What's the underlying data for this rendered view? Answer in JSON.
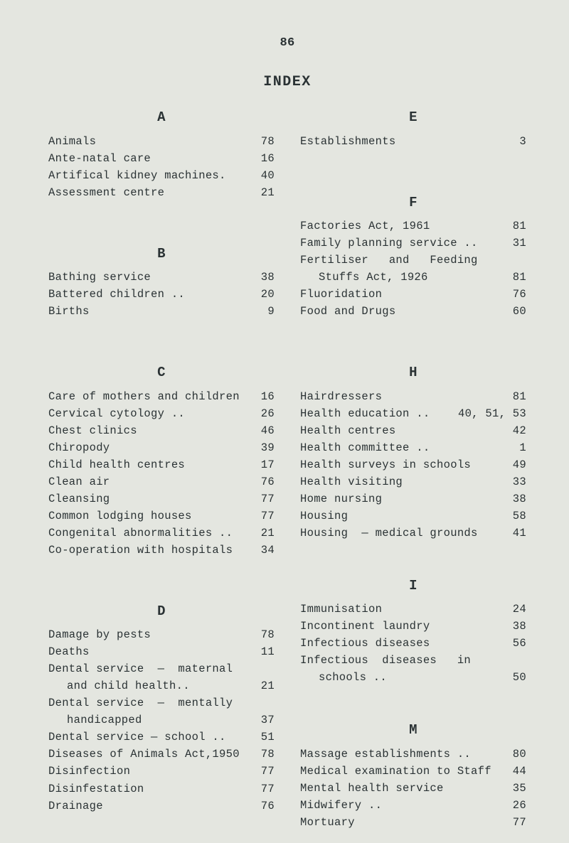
{
  "pageNumber": "86",
  "title": "INDEX",
  "left": {
    "A": [
      {
        "label": "Animals",
        "page": "78"
      },
      {
        "label": "Ante-natal care",
        "page": "16"
      },
      {
        "label": "Artifical kidney machines.",
        "page": "40"
      },
      {
        "label": "Assessment centre",
        "page": "21"
      }
    ],
    "B": [
      {
        "label": "Bathing service",
        "page": "38"
      },
      {
        "label": "Battered children ..",
        "page": "20"
      },
      {
        "label": "Births",
        "page": "9"
      }
    ],
    "C": [
      {
        "label": "Care of mothers and children",
        "page": "16"
      },
      {
        "label": "Cervical cytology ..",
        "page": "26"
      },
      {
        "label": "Chest clinics",
        "page": "46"
      },
      {
        "label": "Chiropody",
        "page": "39"
      },
      {
        "label": "Child health centres",
        "page": "17"
      },
      {
        "label": "Clean air",
        "page": "76"
      },
      {
        "label": "Cleansing",
        "page": "77"
      },
      {
        "label": "Common lodging houses",
        "page": "77"
      },
      {
        "label": "Congenital abnormalities ..",
        "page": "21"
      },
      {
        "label": "Co-operation with hospitals",
        "page": "34"
      }
    ],
    "D": [
      {
        "label": "Damage by pests",
        "page": "78"
      },
      {
        "label": "Deaths",
        "page": "11"
      },
      {
        "label": "Dental service  —  maternal",
        "page": ""
      },
      {
        "label": "and child health..",
        "page": "21",
        "indent": true
      },
      {
        "label": "Dental service  —  mentally",
        "page": ""
      },
      {
        "label": "handicapped",
        "page": "37",
        "indent": true
      },
      {
        "label": "Dental service — school ..",
        "page": "51"
      },
      {
        "label": "Diseases of Animals Act,1950",
        "page": "78"
      },
      {
        "label": "Disinfection",
        "page": "77"
      },
      {
        "label": "Disinfestation",
        "page": "77"
      },
      {
        "label": "Drainage",
        "page": "76"
      }
    ]
  },
  "right": {
    "E": [
      {
        "label": "Establishments",
        "page": "3"
      }
    ],
    "F": [
      {
        "label": "Factories Act, 1961",
        "page": "81"
      },
      {
        "label": "Family planning service ..",
        "page": "31"
      },
      {
        "label": "Fertiliser   and   Feeding",
        "page": ""
      },
      {
        "label": "Stuffs Act, 1926",
        "page": "81",
        "indent": true
      },
      {
        "label": "Fluoridation",
        "page": "76"
      },
      {
        "label": "Food and Drugs",
        "page": "60"
      }
    ],
    "H": [
      {
        "label": "Hairdressers",
        "page": "81"
      },
      {
        "label": "Health education ..",
        "page": "40, 51, 53"
      },
      {
        "label": "Health centres",
        "page": "42"
      },
      {
        "label": "Health committee ..",
        "page": "1"
      },
      {
        "label": "Health surveys in schools",
        "page": "49"
      },
      {
        "label": "Health visiting",
        "page": "33"
      },
      {
        "label": "Home nursing",
        "page": "38"
      },
      {
        "label": "Housing",
        "page": "58"
      },
      {
        "label": "Housing  — medical grounds",
        "page": "41"
      }
    ],
    "I": [
      {
        "label": "Immunisation",
        "page": "24"
      },
      {
        "label": "Incontinent laundry",
        "page": "38"
      },
      {
        "label": "Infectious diseases",
        "page": "56"
      },
      {
        "label": "Infectious  diseases   in",
        "page": ""
      },
      {
        "label": "schools ..",
        "page": "50",
        "indent": true
      }
    ],
    "M": [
      {
        "label": "Massage establishments ..",
        "page": "80"
      },
      {
        "label": "Medical examination to Staff",
        "page": "44"
      },
      {
        "label": "Mental health service",
        "page": "35"
      },
      {
        "label": "Midwifery ..",
        "page": "26"
      },
      {
        "label": "Mortuary",
        "page": "77"
      }
    ]
  }
}
